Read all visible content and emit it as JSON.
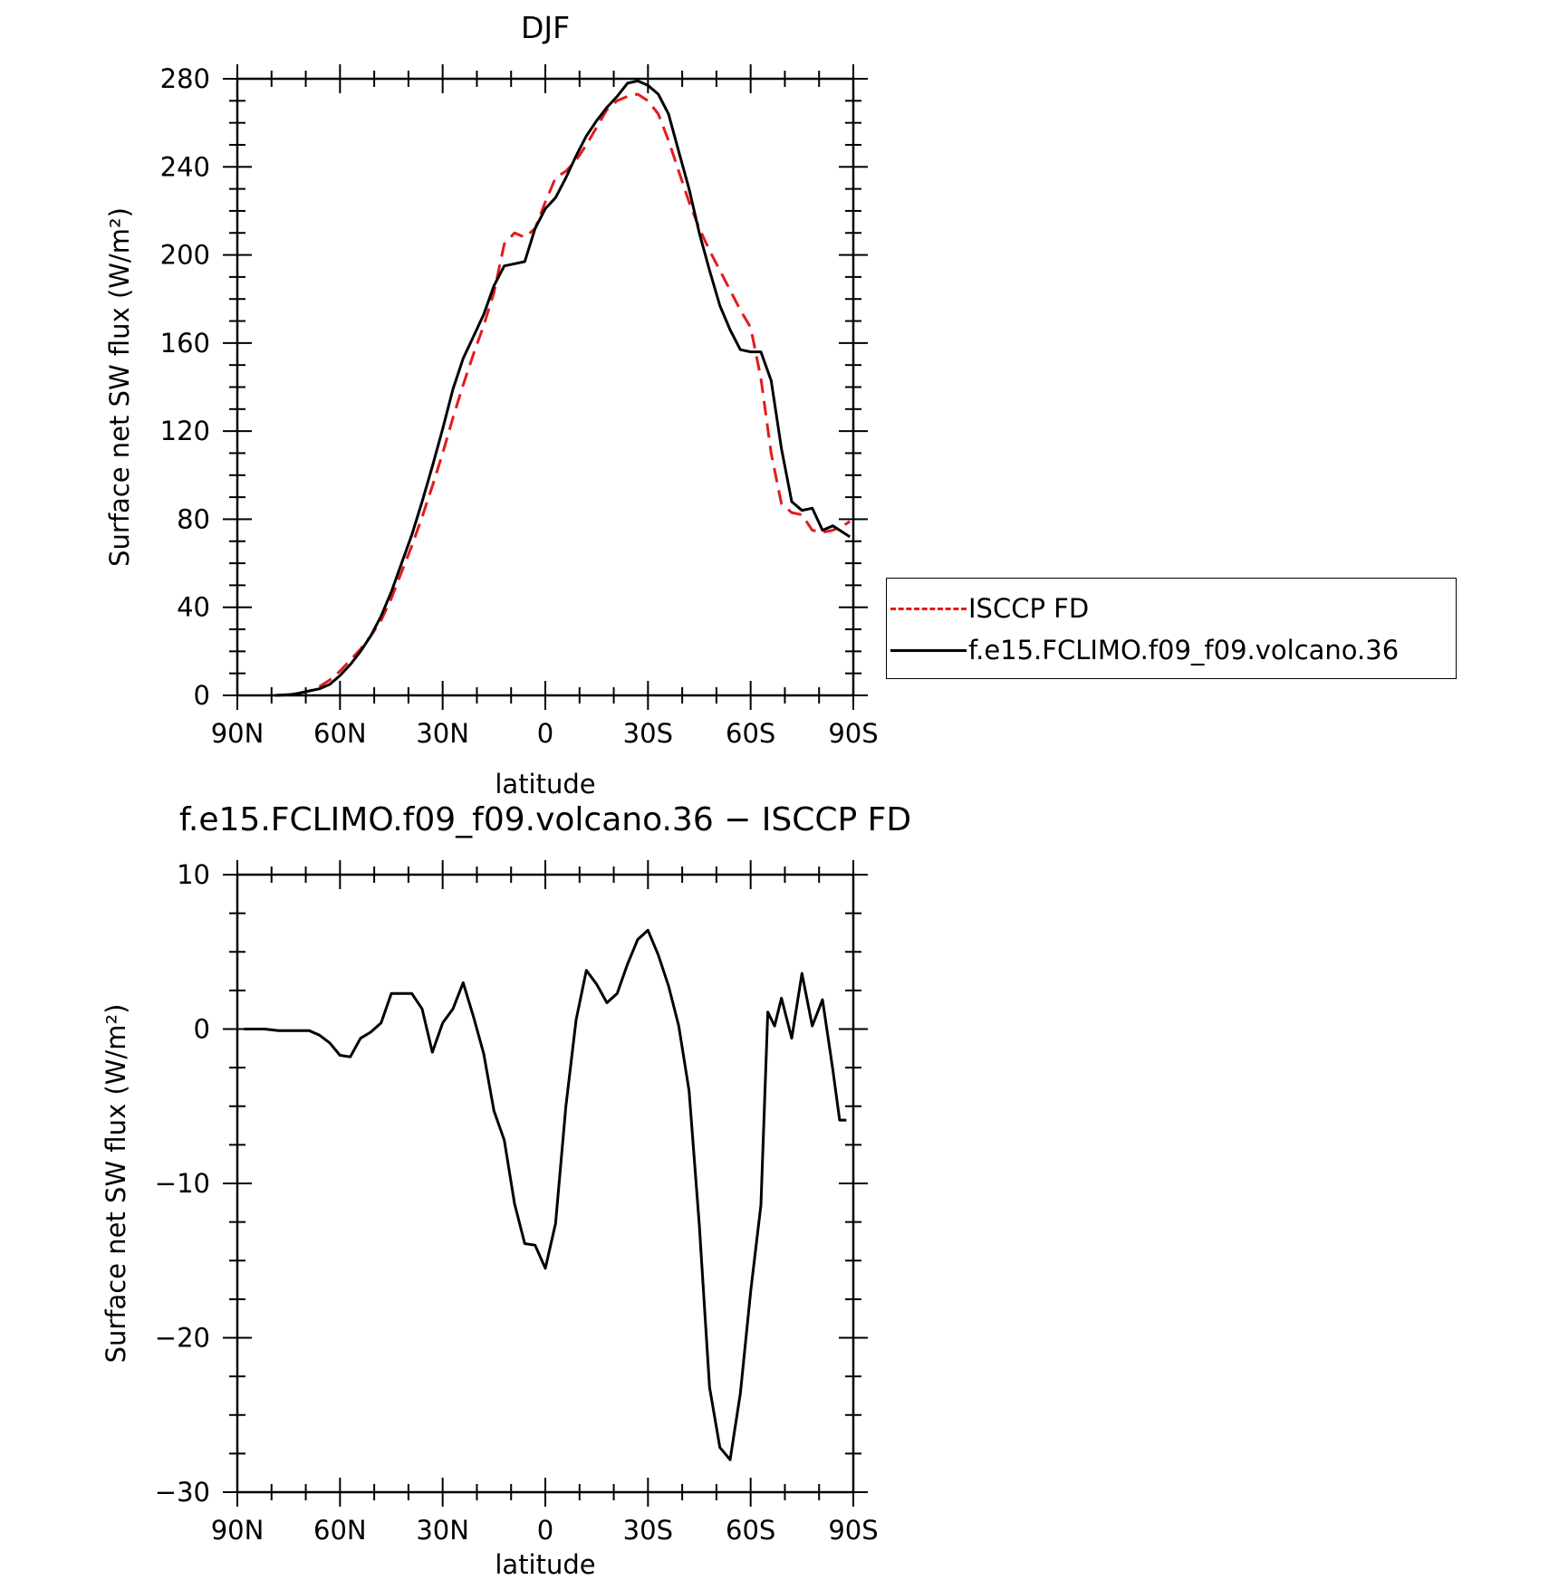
{
  "chart_data": [
    {
      "type": "line",
      "title": "DJF",
      "xlabel": "latitude",
      "ylabel": "Surface net SW flux (W/m²)",
      "xlim": [
        -90,
        90
      ],
      "ylim": [
        0,
        280
      ],
      "x_ticks": [
        {
          "value": -90,
          "label": "90N"
        },
        {
          "value": -60,
          "label": "60N"
        },
        {
          "value": -30,
          "label": "30N"
        },
        {
          "value": 0,
          "label": "0"
        },
        {
          "value": 30,
          "label": "30S"
        },
        {
          "value": 60,
          "label": "60S"
        },
        {
          "value": 90,
          "label": "90S"
        }
      ],
      "y_ticks": [
        0,
        40,
        80,
        120,
        160,
        200,
        240,
        280
      ],
      "legend_position": "right",
      "series": [
        {
          "name": "ISCCP FD",
          "color": "#e41a1c",
          "style": "dashed",
          "x": [
            -79,
            -75,
            -72,
            -69,
            -66,
            -63,
            -60,
            -57,
            -54,
            -51,
            -48,
            -45,
            -42,
            -39,
            -36,
            -33,
            -30,
            -27,
            -24,
            -21,
            -18,
            -15,
            -12,
            -9,
            -6,
            -3,
            0,
            3,
            6,
            9,
            12,
            15,
            18,
            21,
            24,
            27,
            30,
            33,
            36,
            39,
            42,
            45,
            48,
            51,
            54,
            57,
            60,
            63,
            66,
            69,
            72,
            75,
            78,
            81,
            84,
            87,
            89
          ],
          "y": [
            0,
            0.3,
            1,
            2,
            4,
            7,
            11,
            16,
            21,
            27,
            34,
            44,
            56,
            68,
            81,
            95,
            110,
            126,
            141,
            155,
            168,
            183,
            205,
            210,
            208,
            212,
            224,
            235,
            238,
            243,
            250,
            258,
            266,
            270,
            272,
            273,
            270,
            264,
            252,
            238,
            224,
            212,
            202,
            193,
            184,
            175,
            167,
            144,
            110,
            87,
            83,
            82,
            75,
            74,
            75,
            77,
            79
          ]
        },
        {
          "name": "f.e15.FCLIMO.f09_f09.volcano.36",
          "color": "#000000",
          "style": "solid",
          "x": [
            -79,
            -75,
            -72,
            -69,
            -66,
            -63,
            -60,
            -57,
            -54,
            -51,
            -48,
            -45,
            -42,
            -39,
            -36,
            -33,
            -30,
            -27,
            -24,
            -21,
            -18,
            -15,
            -12,
            -9,
            -6,
            -3,
            0,
            3,
            6,
            9,
            12,
            15,
            18,
            21,
            24,
            27,
            30,
            33,
            36,
            39,
            42,
            45,
            48,
            51,
            54,
            57,
            60,
            63,
            66,
            69,
            72,
            75,
            78,
            81,
            84,
            87,
            89
          ],
          "y": [
            0,
            0.3,
            1,
            2,
            3,
            5,
            9,
            14,
            20,
            27,
            36,
            47,
            60,
            73,
            88,
            104,
            121,
            139,
            153,
            163,
            173,
            186,
            195,
            196,
            197,
            212,
            221,
            226,
            235,
            245,
            254,
            261,
            267,
            272,
            278,
            279,
            277,
            273,
            264,
            247,
            230,
            210,
            193,
            177,
            166,
            157,
            156,
            156,
            143,
            112,
            88,
            84,
            85,
            75,
            77,
            74,
            72
          ]
        }
      ]
    },
    {
      "type": "line",
      "title": "f.e15.FCLIMO.f09_f09.volcano.36 − ISCCP FD",
      "xlabel": "latitude",
      "ylabel": "Surface net SW flux (W/m²)",
      "xlim": [
        -90,
        90
      ],
      "ylim": [
        -30,
        10
      ],
      "x_ticks": [
        {
          "value": -90,
          "label": "90N"
        },
        {
          "value": -60,
          "label": "60N"
        },
        {
          "value": -30,
          "label": "30N"
        },
        {
          "value": 0,
          "label": "0"
        },
        {
          "value": 30,
          "label": "30S"
        },
        {
          "value": 60,
          "label": "60S"
        },
        {
          "value": 90,
          "label": "90S"
        }
      ],
      "y_ticks": [
        {
          "value": -30,
          "label": "−30"
        },
        {
          "value": -20,
          "label": "−20"
        },
        {
          "value": -10,
          "label": "−10"
        },
        {
          "value": 0,
          "label": "0"
        },
        {
          "value": 10,
          "label": "10"
        }
      ],
      "series": [
        {
          "color": "#000000",
          "style": "solid",
          "x": [
            -88,
            -82,
            -78,
            -75,
            -72,
            -69,
            -66,
            -63,
            -60,
            -57,
            -54,
            -51,
            -48,
            -45,
            -42,
            -39,
            -36,
            -33,
            -30,
            -27,
            -24,
            -21,
            -18,
            -15,
            -12,
            -9,
            -6,
            -3,
            0,
            3,
            6,
            9,
            12,
            15,
            18,
            21,
            24,
            27,
            30,
            33,
            36,
            39,
            42,
            45,
            48,
            51,
            54,
            57,
            60,
            63,
            65,
            67,
            69,
            72,
            75,
            78,
            81,
            84,
            86,
            88
          ],
          "y": [
            0,
            0,
            -0.1,
            -0.1,
            -0.1,
            -0.1,
            -0.4,
            -0.9,
            -1.7,
            -1.8,
            -0.6,
            -0.2,
            0.4,
            2.3,
            2.3,
            2.3,
            1.3,
            -1.5,
            0.4,
            1.3,
            3.0,
            0.8,
            -1.6,
            -5.3,
            -7.2,
            -11.3,
            -13.9,
            -14.0,
            -15.5,
            -12.6,
            -5.0,
            0.6,
            3.8,
            2.9,
            1.7,
            2.3,
            4.2,
            5.8,
            6.4,
            4.8,
            2.8,
            0.2,
            -4.0,
            -12.7,
            -23.2,
            -27.1,
            -27.9,
            -23.6,
            -17.0,
            -11.4,
            1.1,
            0.2,
            2.0,
            -0.6,
            3.6,
            0.2,
            1.9,
            -2.6,
            -5.9,
            -5.9
          ]
        }
      ]
    }
  ]
}
